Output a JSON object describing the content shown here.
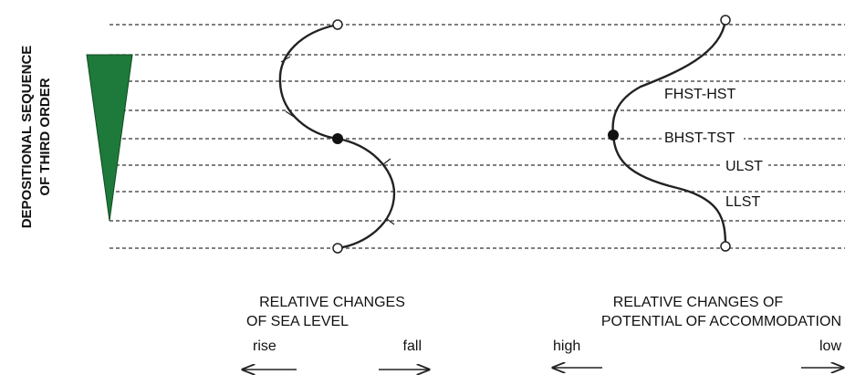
{
  "title_lines": [
    "DEPOSITIONAL SEQUENCE",
    "OF THIRD ORDER"
  ],
  "systems_tracts": [
    "FHST-HST",
    "BHST-TST",
    "ULST",
    "LLST"
  ],
  "sea_level": {
    "caption_lines": [
      "RELATIVE CHANGES",
      "OF SEA LEVEL"
    ],
    "left": "rise",
    "right": "fall"
  },
  "accommodation": {
    "caption_lines": [
      "RELATIVE CHANGES OF",
      "POTENTIAL OF ACCOMMODATION"
    ],
    "left": "high",
    "right": "low"
  }
}
